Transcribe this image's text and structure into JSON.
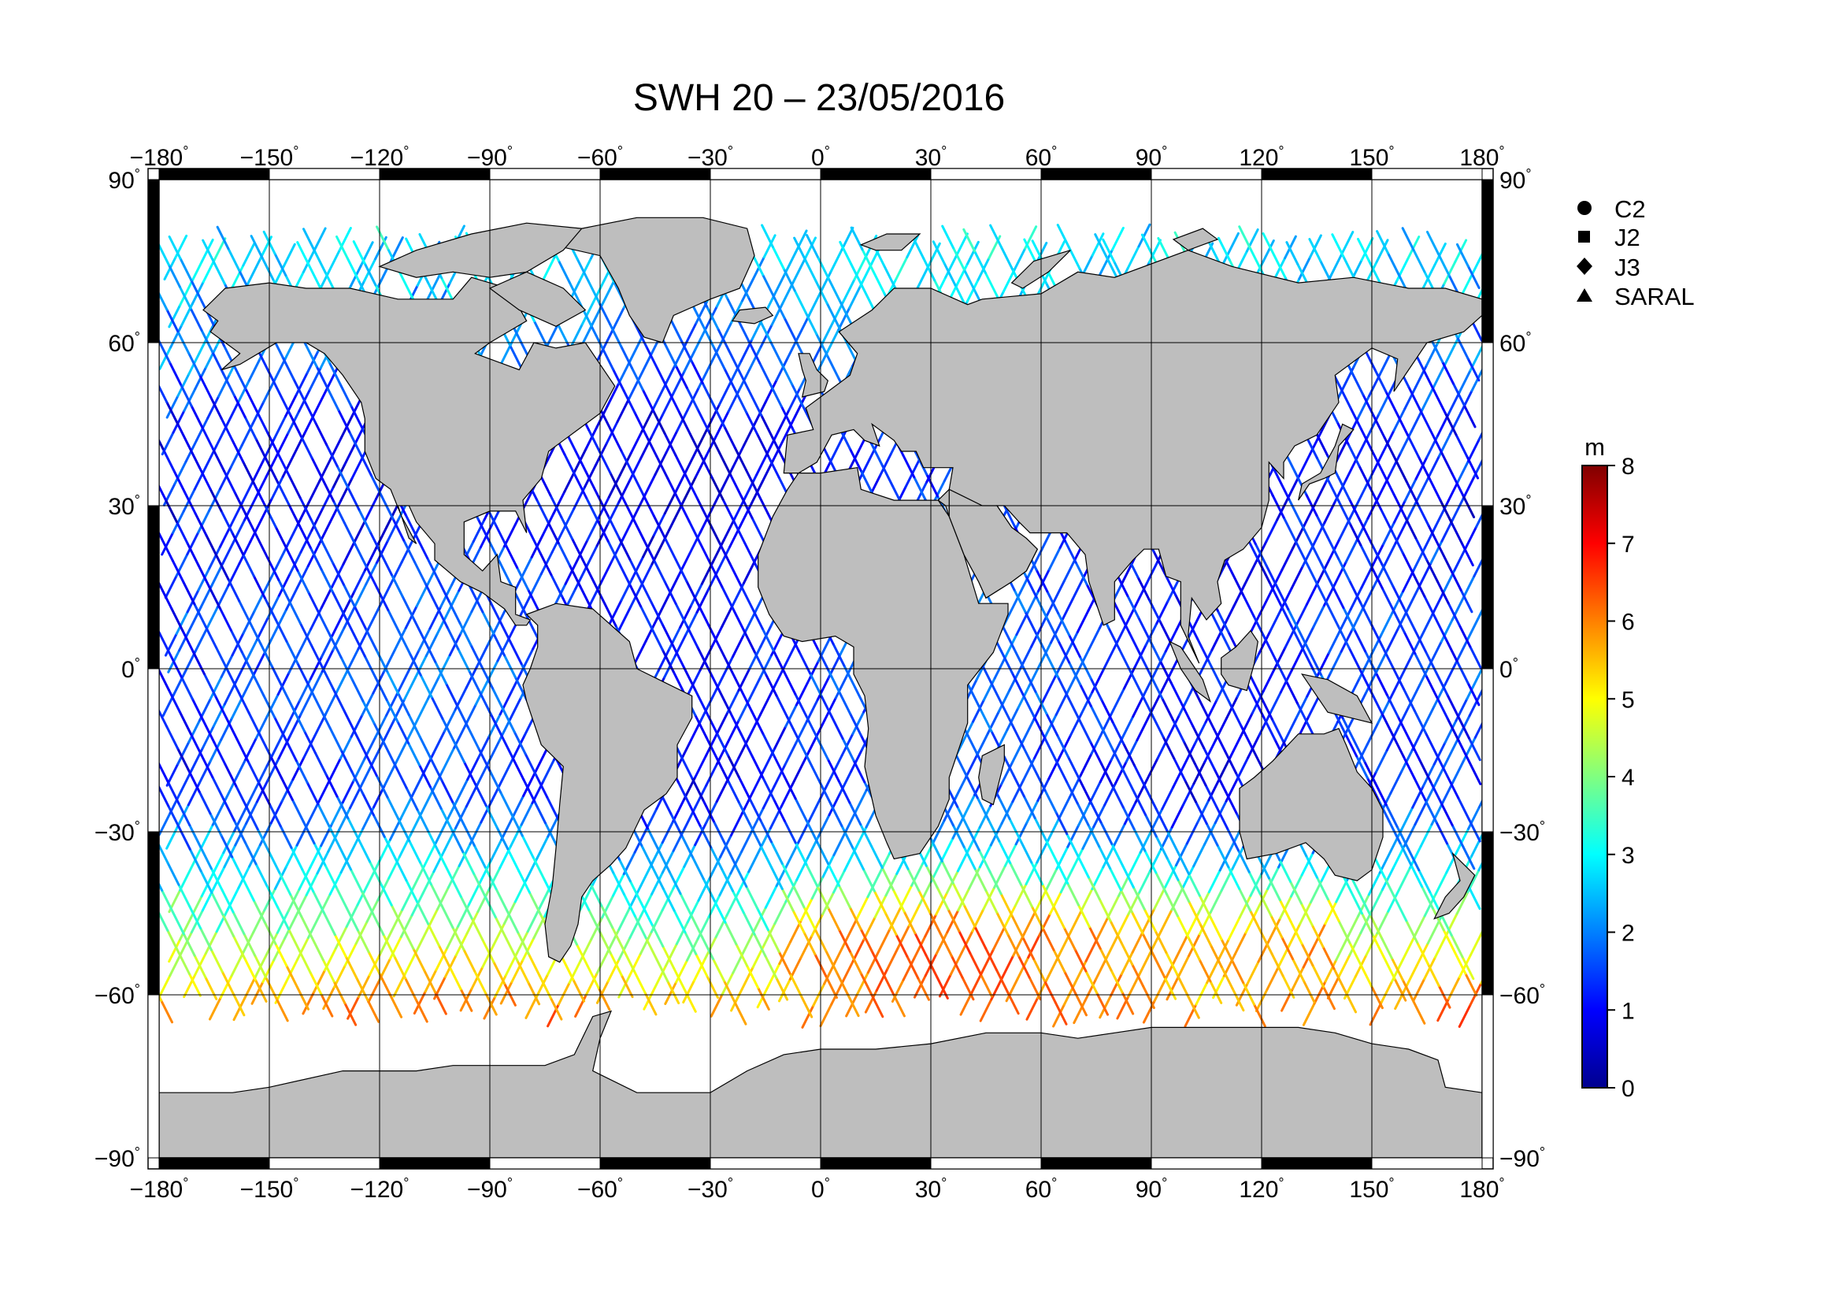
{
  "title": "SWH 20 – 23/05/2016",
  "lon_ticks": [
    "−180",
    "−150",
    "−120",
    "−90",
    "−60",
    "−30",
    "0",
    "30",
    "60",
    "90",
    "120",
    "150",
    "180"
  ],
  "lat_ticks": [
    "90",
    "60",
    "30",
    "0",
    "−30",
    "−60",
    "−90"
  ],
  "degree_symbol": "°",
  "legend": [
    {
      "label": "C2",
      "symbol": "circle"
    },
    {
      "label": "J2",
      "symbol": "square"
    },
    {
      "label": "J3",
      "symbol": "diamond"
    },
    {
      "label": "SARAL",
      "symbol": "triangle"
    }
  ],
  "colorbar": {
    "unit": "m",
    "min": 0,
    "max": 8,
    "ticks": [
      "0",
      "1",
      "2",
      "3",
      "4",
      "5",
      "6",
      "7",
      "8"
    ],
    "colors": [
      "#00008f",
      "#0000ff",
      "#0080ff",
      "#00ffff",
      "#80ff80",
      "#ffff00",
      "#ff8000",
      "#ff0000",
      "#800000"
    ]
  },
  "colors": {
    "land": "#bebebe",
    "coast": "#000000",
    "frame": "#000000",
    "grid": "#000000"
  },
  "map": {
    "projection": "equirectangular",
    "lon_range": [
      -180,
      180
    ],
    "lat_range": [
      -90,
      90
    ],
    "track_satellites": [
      "C2",
      "J2",
      "J3",
      "SARAL"
    ]
  }
}
